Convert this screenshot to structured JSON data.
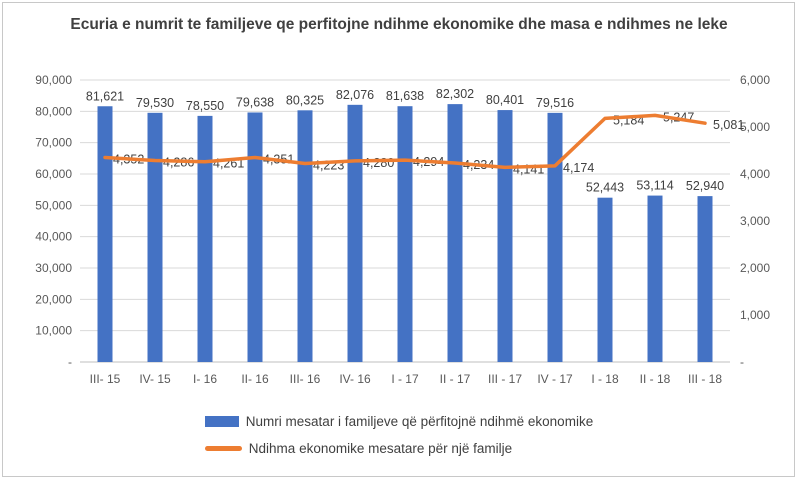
{
  "title": "Ecuria e numrit te familjeve qe perfitojne ndihme ekonomike dhe masa e ndihmes ne leke",
  "chart_data": {
    "type": "combo",
    "title": "Ecuria e numrit te familjeve qe perfitojne ndihme ekonomike dhe masa e ndihmes ne leke",
    "categories": [
      "III- 15",
      "IV- 15",
      "I- 16",
      "II- 16",
      "III- 16",
      "IV- 16",
      "I - 17",
      "II - 17",
      "III - 17",
      "IV - 17",
      "I - 18",
      "II - 18",
      "III - 18"
    ],
    "series": [
      {
        "name": "Numri mesatar i familjeve që përfitojnë ndihmë ekonomike",
        "type": "bar",
        "axis": "left",
        "color": "#4472C4",
        "values": [
          81621,
          79530,
          78550,
          79638,
          80325,
          82076,
          81638,
          82302,
          80401,
          79516,
          52443,
          53114,
          52940
        ]
      },
      {
        "name": "Ndihma ekonomike mesatare për një familje",
        "type": "line",
        "axis": "right",
        "color": "#ED7D31",
        "values": [
          4352,
          4286,
          4261,
          4351,
          4223,
          4280,
          4294,
          4234,
          4141,
          4174,
          5184,
          5247,
          5081
        ]
      }
    ],
    "left_axis": {
      "min": 0,
      "max": 90000,
      "step": 10000,
      "tick_labels": [
        "-",
        "10,000",
        "20,000",
        "30,000",
        "40,000",
        "50,000",
        "60,000",
        "70,000",
        "80,000",
        "90,000"
      ]
    },
    "right_axis": {
      "min": 0,
      "max": 6000,
      "step": 1000,
      "tick_labels": [
        "-",
        "1,000",
        "2,000",
        "3,000",
        "4,000",
        "5,000",
        "6,000"
      ]
    },
    "grid": true,
    "data_labels": true,
    "legend_position": "bottom"
  },
  "colors": {
    "bar_series": "#4472C4",
    "line_series": "#ED7D31",
    "gridline": "#D9D9D9",
    "axis_line": "#BFBFBF",
    "tick_text": "#595959",
    "data_label_text": "#404040",
    "title_text": "#404040",
    "frame_border": "#C8C8C8"
  }
}
